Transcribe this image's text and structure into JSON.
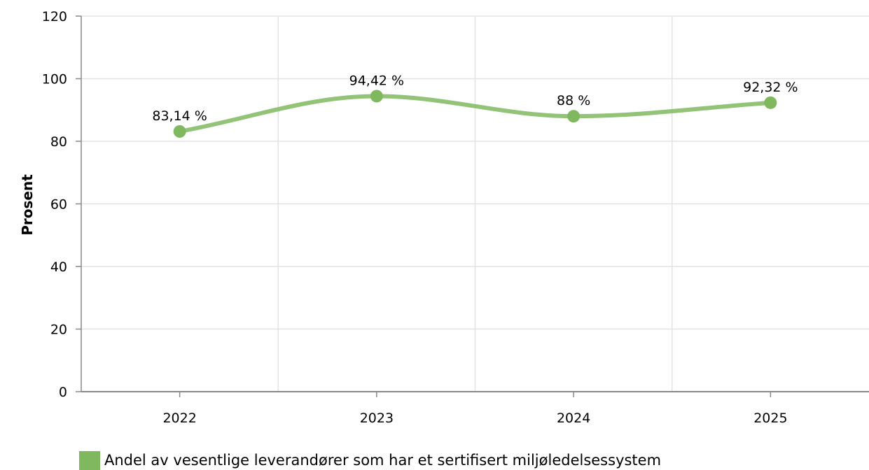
{
  "chart_data": {
    "type": "line",
    "categories": [
      "2022",
      "2023",
      "2024",
      "2025"
    ],
    "series": [
      {
        "name": "Andel av vesentlige leverandører som har et sertifisert miljøledelsessystem",
        "values": [
          83.14,
          94.42,
          88,
          92.32
        ],
        "data_labels": [
          "83,14 %",
          "94,42 %",
          "88 %",
          "92,32 %"
        ],
        "color": "#7fb85e"
      }
    ],
    "ylabel": "Prosent",
    "xlabel": "",
    "ylim": [
      0,
      120
    ],
    "yticks": [
      0,
      20,
      40,
      60,
      80,
      100,
      120
    ],
    "grid": true,
    "legend_position": "bottom-left",
    "smooth": true
  }
}
